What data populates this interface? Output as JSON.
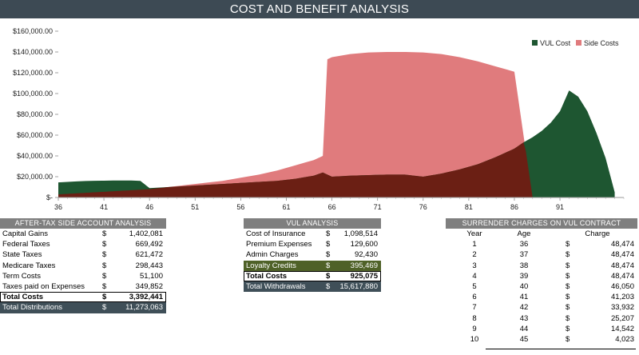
{
  "title": "COST AND BENEFIT ANALYSIS",
  "chart_data": {
    "type": "area",
    "x_label": "",
    "y_label": "",
    "x_ticks": [
      36,
      41,
      46,
      51,
      56,
      61,
      66,
      71,
      76,
      81,
      86,
      91
    ],
    "y_ticks": [
      "$160,000.00",
      "$140,000.00",
      "$120,000.00",
      "$100,000.00",
      "$80,000.00",
      "$60,000.00",
      "$40,000.00",
      "$20,000.00",
      "$-"
    ],
    "ylim": [
      0,
      160000
    ],
    "xlim": [
      36,
      98
    ],
    "legend_position": "top-right",
    "series": [
      {
        "name": "VUL Cost",
        "color": "#1e5631",
        "x": [
          36,
          37,
          38,
          39,
          40,
          41,
          42,
          43,
          44,
          45,
          46,
          47,
          48,
          50,
          52,
          54,
          56,
          58,
          60,
          62,
          64,
          65,
          66,
          68,
          70,
          72,
          74,
          75,
          76,
          78,
          80,
          82,
          84,
          86,
          87,
          88,
          89,
          90,
          91,
          92,
          93,
          94,
          95,
          96,
          97
        ],
        "values": [
          14500,
          15000,
          15500,
          15900,
          16100,
          16200,
          16300,
          16300,
          16300,
          16000,
          9000,
          9500,
          10000,
          11000,
          12000,
          13000,
          14000,
          15000,
          16000,
          18000,
          21000,
          24000,
          20000,
          21000,
          21500,
          22000,
          22000,
          21000,
          20000,
          23000,
          27000,
          32000,
          39000,
          47000,
          53000,
          58000,
          64000,
          72000,
          83000,
          103000,
          97000,
          83000,
          62000,
          38000,
          5000
        ]
      },
      {
        "name": "Side Costs",
        "color": "#e07b7d",
        "x": [
          36,
          38,
          40,
          42,
          44,
          46,
          48,
          50,
          52,
          54,
          56,
          58,
          60,
          62,
          64,
          65,
          65.5,
          66,
          68,
          70,
          72,
          74,
          76,
          78,
          80,
          82,
          84,
          86,
          87,
          88,
          89
        ],
        "values": [
          3000,
          4000,
          5000,
          6000,
          7000,
          8000,
          10000,
          12000,
          14000,
          16000,
          19000,
          22000,
          26000,
          31000,
          36000,
          40000,
          133000,
          135000,
          138000,
          139500,
          140000,
          140000,
          139500,
          138000,
          135000,
          131000,
          126000,
          121000,
          60000,
          0,
          0
        ]
      }
    ]
  },
  "after_tax": {
    "header": "AFTER-TAX SIDE ACCOUNT ANALYSIS",
    "rows": [
      {
        "label": "Capital Gains",
        "dollar": "$",
        "value": "1,402,081"
      },
      {
        "label": "Federal Taxes",
        "dollar": "$",
        "value": "669,492"
      },
      {
        "label": "State Taxes",
        "dollar": "$",
        "value": "621,472"
      },
      {
        "label": "Medicare Taxes",
        "dollar": "$",
        "value": "298,443"
      },
      {
        "label": "Term Costs",
        "dollar": "$",
        "value": "51,100"
      },
      {
        "label": "Taxes paid on Expenses",
        "dollar": "$",
        "value": "349,852"
      }
    ],
    "total_costs": {
      "label": "Total Costs",
      "dollar": "$",
      "value": "3,392,441"
    },
    "total_distributions": {
      "label": "Total Distributions",
      "dollar": "$",
      "value": "11,273,063"
    }
  },
  "vul": {
    "header": "VUL ANALYSIS",
    "rows": [
      {
        "label": "Cost of Insurance",
        "dollar": "$",
        "value": "1,098,514"
      },
      {
        "label": "Premium Expenses",
        "dollar": "$",
        "value": "129,600"
      },
      {
        "label": "Admin Charges",
        "dollar": "$",
        "value": "92,430"
      }
    ],
    "loyalty": {
      "label": "Loyalty Credits",
      "dollar": "$",
      "value": "395,469"
    },
    "total_costs": {
      "label": "Total Costs",
      "dollar": "$",
      "value": "925,075"
    },
    "total_withdrawals": {
      "label": "Total Withdrawals",
      "dollar": "$",
      "value": "15,617,880"
    }
  },
  "surrender": {
    "header": "SURRENDER CHARGES ON VUL CONTRACT",
    "columns": {
      "year": "Year",
      "age": "Age",
      "charge": "Charge"
    },
    "rows": [
      {
        "year": "1",
        "age": "36",
        "dollar": "$",
        "charge": "48,474"
      },
      {
        "year": "2",
        "age": "37",
        "dollar": "$",
        "charge": "48,474"
      },
      {
        "year": "3",
        "age": "38",
        "dollar": "$",
        "charge": "48,474"
      },
      {
        "year": "4",
        "age": "39",
        "dollar": "$",
        "charge": "48,474"
      },
      {
        "year": "5",
        "age": "40",
        "dollar": "$",
        "charge": "46,050"
      },
      {
        "year": "6",
        "age": "41",
        "dollar": "$",
        "charge": "41,203"
      },
      {
        "year": "7",
        "age": "42",
        "dollar": "$",
        "charge": "33,932"
      },
      {
        "year": "8",
        "age": "43",
        "dollar": "$",
        "charge": "25,207"
      },
      {
        "year": "9",
        "age": "44",
        "dollar": "$",
        "charge": "14,542"
      },
      {
        "year": "10",
        "age": "45",
        "dollar": "$",
        "charge": "4,023"
      }
    ]
  }
}
